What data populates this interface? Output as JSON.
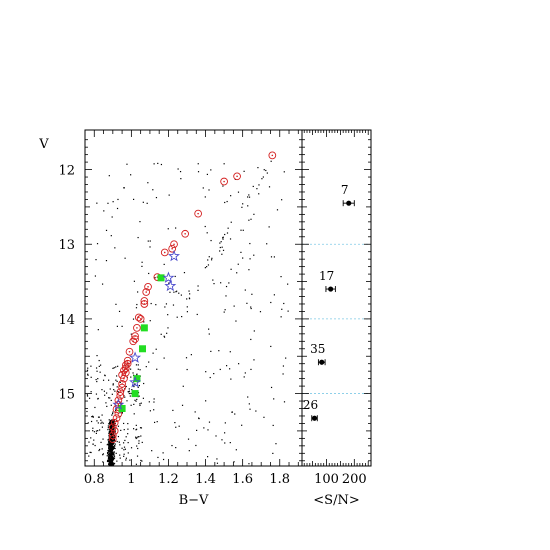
{
  "chart_data": [
    {
      "type": "scatter",
      "xlabel": "B−V",
      "ylabel": "V",
      "xlim": [
        0.75,
        1.92
      ],
      "ylim": [
        15.97,
        11.47
      ],
      "y_inverted": true,
      "xticks": [
        "0.8",
        "1",
        "1.2",
        "1.4",
        "1.6",
        "1.8"
      ],
      "yticks": [
        "12",
        "13",
        "14",
        "15"
      ],
      "grid": false,
      "series": [
        {
          "marker": "red-circle-dot",
          "color": "#d42020",
          "points": [
            [
              1.76,
              11.81
            ],
            [
              1.57,
              12.09
            ],
            [
              1.5,
              12.16
            ],
            [
              1.36,
              12.59
            ],
            [
              1.29,
              12.86
            ],
            [
              1.23,
              13.0
            ],
            [
              1.22,
              13.06
            ],
            [
              1.18,
              13.11
            ],
            [
              1.14,
              13.44
            ],
            [
              1.09,
              13.57
            ],
            [
              1.08,
              13.64
            ],
            [
              1.07,
              13.76
            ],
            [
              1.07,
              13.8
            ],
            [
              1.04,
              13.98
            ],
            [
              1.05,
              14.0
            ],
            [
              1.03,
              14.12
            ],
            [
              1.02,
              14.23
            ],
            [
              1.02,
              14.27
            ],
            [
              1.01,
              14.3
            ],
            [
              0.99,
              14.44
            ],
            [
              0.98,
              14.56
            ],
            [
              0.98,
              14.6
            ],
            [
              0.97,
              14.62
            ],
            [
              0.97,
              14.66
            ],
            [
              0.96,
              14.69
            ],
            [
              0.97,
              14.72
            ],
            [
              0.95,
              14.75
            ],
            [
              0.96,
              14.8
            ],
            [
              0.95,
              14.87
            ],
            [
              0.95,
              14.92
            ],
            [
              0.94,
              14.98
            ],
            [
              0.94,
              15.03
            ],
            [
              0.93,
              15.09
            ],
            [
              0.93,
              15.15
            ],
            [
              0.92,
              15.21
            ],
            [
              0.93,
              15.27
            ],
            [
              0.92,
              15.33
            ],
            [
              0.91,
              15.39
            ],
            [
              0.9,
              15.45
            ],
            [
              0.91,
              15.5
            ],
            [
              0.9,
              15.56
            ],
            [
              0.9,
              15.61
            ]
          ]
        },
        {
          "marker": "blue-star",
          "color": "#4a4acc",
          "points": [
            [
              1.23,
              13.16
            ],
            [
              1.2,
              13.45
            ],
            [
              1.21,
              13.56
            ],
            [
              1.02,
              14.52
            ],
            [
              1.02,
              14.85
            ],
            [
              0.93,
              15.15
            ]
          ]
        },
        {
          "marker": "green-square",
          "color": "#22dd22",
          "points": [
            [
              1.16,
              13.45
            ],
            [
              1.07,
              14.12
            ],
            [
              1.06,
              14.4
            ],
            [
              1.03,
              14.8
            ],
            [
              1.02,
              15.0
            ],
            [
              0.95,
              15.2
            ]
          ]
        }
      ]
    },
    {
      "type": "scatter",
      "xlabel": "<S/N>",
      "xticks": [
        "100",
        "200"
      ],
      "xlim": [
        12,
        260
      ],
      "y_inverted": true,
      "dashed_separators": [
        13,
        14,
        15
      ],
      "series": [
        {
          "marker": "errorbar-point",
          "points": [
            {
              "v_bin": "12-13",
              "sn": 180,
              "sn_err": 20,
              "count": "7"
            },
            {
              "v_bin": "13-14",
              "sn": 115,
              "sn_err": 17,
              "count": "17"
            },
            {
              "v_bin": "14-15",
              "sn": 83,
              "sn_err": 12,
              "count": "35"
            },
            {
              "v_bin": "15-16",
              "sn": 57,
              "sn_err": 10,
              "count": "26"
            }
          ]
        }
      ]
    }
  ]
}
